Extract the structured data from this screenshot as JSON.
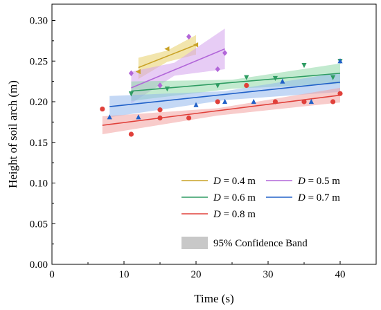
{
  "chart_data": {
    "type": "scatter",
    "title": "",
    "xlabel": "Time (s)",
    "ylabel": "Height of soil arch (m)",
    "xlim": [
      0,
      45
    ],
    "ylim": [
      0,
      0.32
    ],
    "xticks": [
      "0",
      "10",
      "20",
      "30",
      "40"
    ],
    "yticks": [
      "0.00",
      "0.05",
      "0.10",
      "0.15",
      "0.20",
      "0.25",
      "0.30"
    ],
    "grid": false,
    "legend_position": "bottom-right",
    "series": [
      {
        "name": "D = 0.4 m",
        "name_var": "D",
        "name_rest": " = 0.4 m",
        "color": "#c9a227",
        "band_color": "#e8cf6a",
        "marker": "triangle-left",
        "points": [
          [
            12,
            0.237
          ],
          [
            16,
            0.265
          ],
          [
            20,
            0.27
          ]
        ],
        "fit": [
          [
            12,
            0.242
          ],
          [
            20,
            0.27
          ]
        ],
        "band_upper": [
          [
            12,
            0.254
          ],
          [
            16,
            0.263
          ],
          [
            20,
            0.282
          ]
        ],
        "band_lower": [
          [
            12,
            0.228
          ],
          [
            16,
            0.249
          ],
          [
            20,
            0.258
          ]
        ]
      },
      {
        "name": "D = 0.5 m",
        "name_var": "D",
        "name_rest": " = 0.5 m",
        "color": "#b266d9",
        "band_color": "#d3a3ec",
        "marker": "diamond",
        "points": [
          [
            11,
            0.235
          ],
          [
            15,
            0.22
          ],
          [
            19,
            0.28
          ],
          [
            23,
            0.24
          ],
          [
            24,
            0.26
          ]
        ],
        "fit": [
          [
            11,
            0.217
          ],
          [
            24,
            0.265
          ]
        ],
        "band_upper": [
          [
            11,
            0.237
          ],
          [
            17,
            0.248
          ],
          [
            24,
            0.29
          ]
        ],
        "band_lower": [
          [
            11,
            0.198
          ],
          [
            17,
            0.232
          ],
          [
            24,
            0.24
          ]
        ]
      },
      {
        "name": "D = 0.6 m",
        "name_var": "D",
        "name_rest": " = 0.6 m",
        "color": "#2e9c62",
        "band_color": "#8fd9a8",
        "marker": "triangle-down",
        "points": [
          [
            11,
            0.21
          ],
          [
            16,
            0.216
          ],
          [
            23,
            0.22
          ],
          [
            27,
            0.23
          ],
          [
            31,
            0.229
          ],
          [
            35,
            0.245
          ],
          [
            39,
            0.23
          ],
          [
            40,
            0.25
          ]
        ],
        "fit": [
          [
            11,
            0.213
          ],
          [
            40,
            0.235
          ]
        ],
        "band_upper": [
          [
            11,
            0.225
          ],
          [
            25,
            0.227
          ],
          [
            40,
            0.247
          ]
        ],
        "band_lower": [
          [
            11,
            0.201
          ],
          [
            25,
            0.216
          ],
          [
            40,
            0.222
          ]
        ]
      },
      {
        "name": "D = 0.7 m",
        "name_var": "D",
        "name_rest": " = 0.7 m",
        "color": "#2060c8",
        "band_color": "#93b8ec",
        "marker": "triangle-up",
        "points": [
          [
            8,
            0.181
          ],
          [
            12,
            0.181
          ],
          [
            20,
            0.196
          ],
          [
            24,
            0.2
          ],
          [
            28,
            0.2
          ],
          [
            32,
            0.225
          ],
          [
            36,
            0.2
          ],
          [
            40,
            0.25
          ]
        ],
        "fit": [
          [
            8,
            0.194
          ],
          [
            40,
            0.224
          ]
        ],
        "band_upper": [
          [
            8,
            0.207
          ],
          [
            24,
            0.213
          ],
          [
            40,
            0.236
          ]
        ],
        "band_lower": [
          [
            8,
            0.181
          ],
          [
            24,
            0.202
          ],
          [
            40,
            0.212
          ]
        ]
      },
      {
        "name": "D = 0.8 m",
        "name_var": "D",
        "name_rest": " = 0.8 m",
        "color": "#e0403a",
        "band_color": "#f3a3a0",
        "marker": "circle",
        "points": [
          [
            7,
            0.191
          ],
          [
            11,
            0.16
          ],
          [
            15,
            0.19
          ],
          [
            15,
            0.18
          ],
          [
            19,
            0.18
          ],
          [
            23,
            0.2
          ],
          [
            27,
            0.22
          ],
          [
            31,
            0.2
          ],
          [
            35,
            0.2
          ],
          [
            39,
            0.2
          ],
          [
            40,
            0.21
          ]
        ],
        "fit": [
          [
            7,
            0.171
          ],
          [
            40,
            0.208
          ]
        ],
        "band_upper": [
          [
            7,
            0.182
          ],
          [
            23,
            0.192
          ],
          [
            40,
            0.217
          ]
        ],
        "band_lower": [
          [
            7,
            0.16
          ],
          [
            23,
            0.183
          ],
          [
            40,
            0.199
          ]
        ]
      }
    ],
    "band_legend_label": "95% Confidence Band",
    "band_legend_color": "#c8c8c8"
  }
}
